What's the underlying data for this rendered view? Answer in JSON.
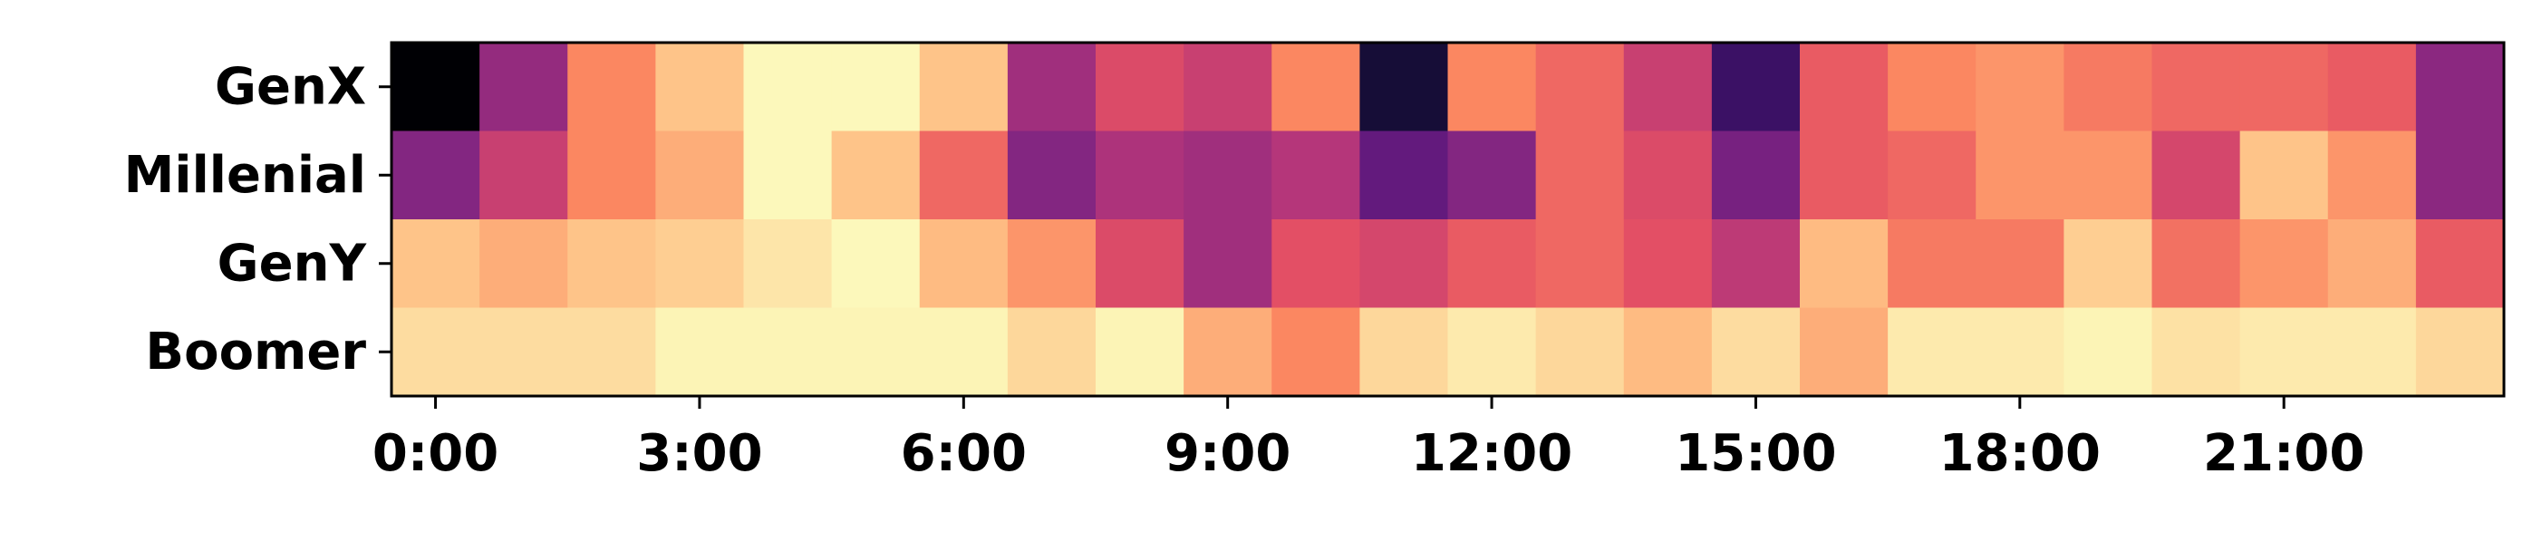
{
  "chart_data": {
    "type": "heatmap",
    "title": "",
    "xlabel": "",
    "ylabel": "",
    "colormap": "magma",
    "rows": [
      "GenX",
      "Millenial",
      "GenY",
      "Boomer"
    ],
    "columns": [
      "0",
      "1",
      "2",
      "3",
      "4",
      "5",
      "6",
      "7",
      "8",
      "9",
      "10",
      "11",
      "12",
      "13",
      "14",
      "15",
      "16",
      "17",
      "18",
      "19",
      "20",
      "21",
      "22",
      "23"
    ],
    "x_ticks": [
      {
        "col": 0,
        "label": "0:00"
      },
      {
        "col": 3,
        "label": "3:00"
      },
      {
        "col": 6,
        "label": "6:00"
      },
      {
        "col": 9,
        "label": "9:00"
      },
      {
        "col": 12,
        "label": "12:00"
      },
      {
        "col": 15,
        "label": "15:00"
      },
      {
        "col": 18,
        "label": "18:00"
      },
      {
        "col": 21,
        "label": "21:00"
      }
    ],
    "values": [
      [
        0.0,
        0.42,
        0.75,
        0.88,
        0.99,
        0.99,
        0.88,
        0.45,
        0.6,
        0.55,
        0.75,
        0.1,
        0.75,
        0.68,
        0.55,
        0.2,
        0.65,
        0.75,
        0.78,
        0.72,
        0.68,
        0.68,
        0.65,
        0.4
      ],
      [
        0.38,
        0.55,
        0.75,
        0.83,
        0.99,
        0.88,
        0.68,
        0.38,
        0.48,
        0.45,
        0.5,
        0.3,
        0.38,
        0.68,
        0.6,
        0.35,
        0.65,
        0.68,
        0.78,
        0.78,
        0.58,
        0.88,
        0.78,
        0.4
      ],
      [
        0.88,
        0.83,
        0.88,
        0.9,
        0.95,
        0.99,
        0.86,
        0.78,
        0.6,
        0.45,
        0.62,
        0.58,
        0.65,
        0.68,
        0.62,
        0.52,
        0.86,
        0.72,
        0.72,
        0.9,
        0.7,
        0.78,
        0.83,
        0.65
      ],
      [
        0.93,
        0.93,
        0.93,
        0.98,
        0.98,
        0.98,
        0.98,
        0.92,
        0.98,
        0.83,
        0.75,
        0.92,
        0.96,
        0.92,
        0.86,
        0.93,
        0.83,
        0.96,
        0.96,
        0.98,
        0.94,
        0.96,
        0.96,
        0.92
      ]
    ]
  }
}
